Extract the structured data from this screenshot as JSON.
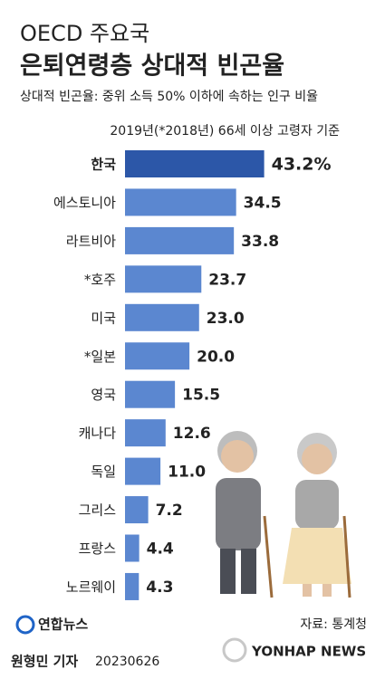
{
  "chart_data": {
    "type": "bar",
    "orientation": "horizontal",
    "supertitle": "OECD 주요국",
    "title": "은퇴연령층 상대적 빈곤율",
    "subtitle": "상대적 빈곤율: 중위 소득 50% 이하에 속하는 인구 비율",
    "note": "2019년(*2018년) 66세 이상 고령자 기준",
    "categories": [
      "한국",
      "에스토니아",
      "라트비아",
      "*호주",
      "미국",
      "*일본",
      "영국",
      "캐나다",
      "독일",
      "그리스",
      "프랑스",
      "노르웨이"
    ],
    "values": [
      43.2,
      34.5,
      33.8,
      23.7,
      23.0,
      20.0,
      15.5,
      12.6,
      11.0,
      7.2,
      4.4,
      4.3
    ],
    "value_labels": [
      "43.2%",
      "34.5",
      "33.8",
      "23.7",
      "23.0",
      "20.0",
      "15.5",
      "12.6",
      "11.0",
      "7.2",
      "4.4",
      "4.3"
    ],
    "colors": [
      "#2c57a8",
      "#5b87d0",
      "#5b87d0",
      "#5b87d0",
      "#5b87d0",
      "#5b87d0",
      "#5b87d0",
      "#5b87d0",
      "#5b87d0",
      "#5b87d0",
      "#5b87d0",
      "#5b87d0"
    ],
    "xlim": [
      0,
      45
    ],
    "source": "자료: 통계청",
    "logo": "연합뉴스",
    "credit": "원형민 기자",
    "date": "20230626",
    "watermark": "YONHAP NEWS"
  }
}
